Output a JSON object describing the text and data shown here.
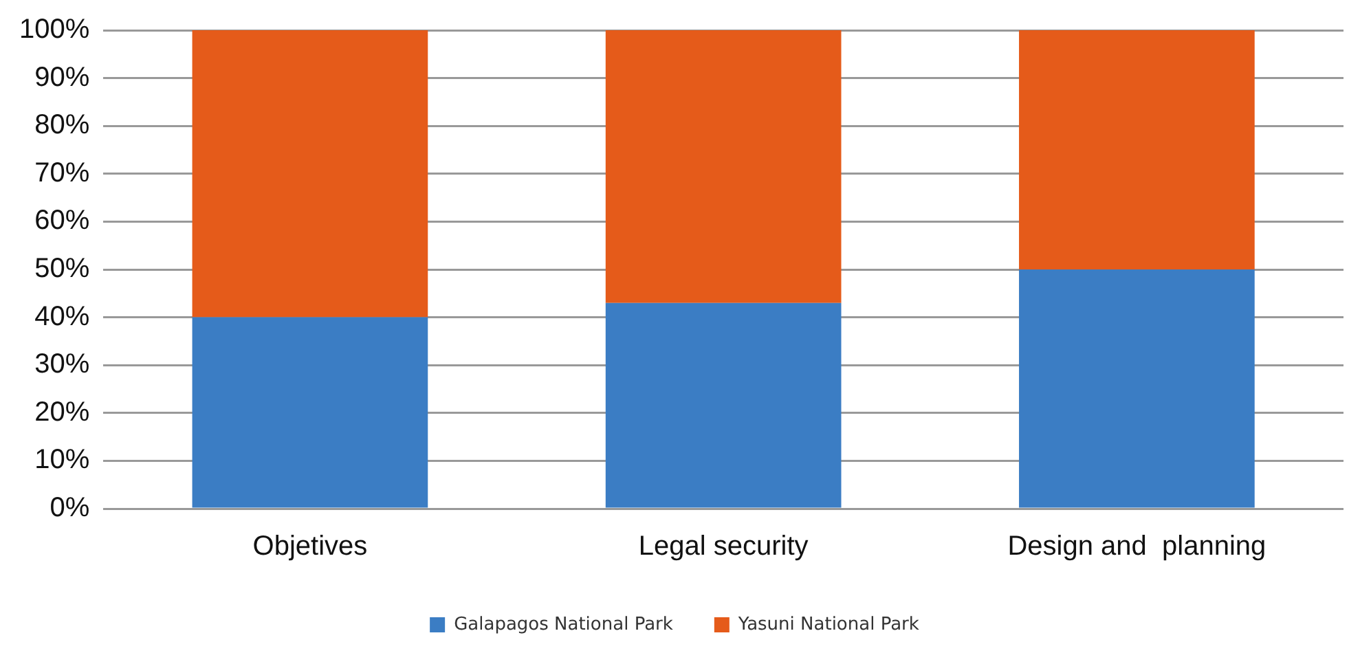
{
  "chart_data": {
    "type": "bar",
    "stacked": true,
    "categories": [
      "Objetives",
      "Legal security",
      "Design and  planning"
    ],
    "series": [
      {
        "name": "Galapagos National Park",
        "color": "#3b7dc4",
        "values": [
          40,
          43,
          50
        ]
      },
      {
        "name": "Yasuni National Park",
        "color": "#e55b1a",
        "values": [
          60,
          57,
          50
        ]
      }
    ],
    "ylim": [
      0,
      100
    ],
    "yticks": [
      {
        "value": 0,
        "label": "0%"
      },
      {
        "value": 10,
        "label": "10%"
      },
      {
        "value": 20,
        "label": "20%"
      },
      {
        "value": 30,
        "label": "30%"
      },
      {
        "value": 40,
        "label": "40%"
      },
      {
        "value": 50,
        "label": "50%"
      },
      {
        "value": 60,
        "label": "60%"
      },
      {
        "value": 70,
        "label": "70%"
      },
      {
        "value": 80,
        "label": "80%"
      },
      {
        "value": 90,
        "label": "90%"
      },
      {
        "value": 100,
        "label": "100%"
      }
    ],
    "grid": "y",
    "legend": "bottom"
  }
}
